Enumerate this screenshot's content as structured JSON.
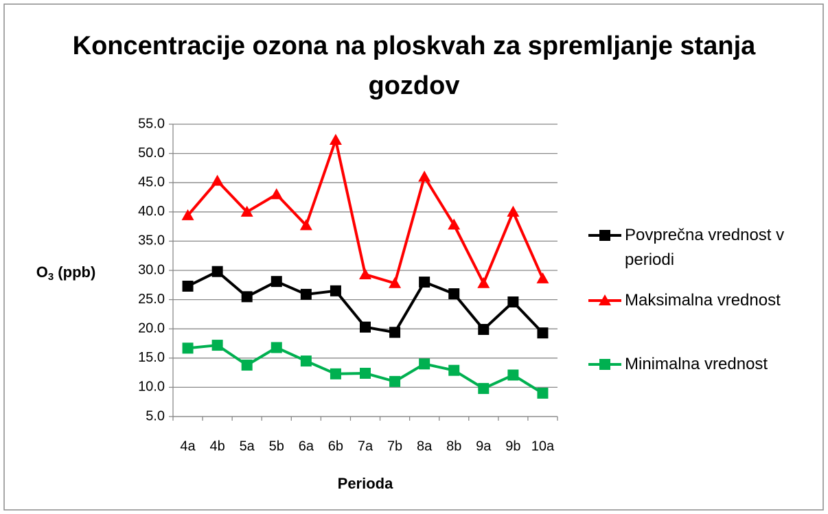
{
  "chart_data": {
    "type": "line",
    "title": "Koncentracije ozona na ploskvah za spremljanje stanja gozdov",
    "x_label": "Perioda",
    "y_label": [
      "O",
      "3",
      " (ppb)"
    ],
    "categories": [
      "4a",
      "4b",
      "5a",
      "5b",
      "6a",
      "6b",
      "7a",
      "7b",
      "8a",
      "8b",
      "9a",
      "9b",
      "10a"
    ],
    "series": [
      {
        "name": "Povprečna vrednost v periodi",
        "color": "#000000",
        "marker": "square",
        "values": [
          27.3,
          29.8,
          25.5,
          28.1,
          25.9,
          26.5,
          20.3,
          19.4,
          28.0,
          26.0,
          19.9,
          24.6,
          19.3
        ]
      },
      {
        "name": "Maksimalna vrednost",
        "color": "#ff0000",
        "marker": "triangle",
        "values": [
          39.4,
          45.3,
          40.0,
          43.0,
          37.7,
          52.3,
          29.3,
          27.8,
          46.0,
          37.8,
          27.8,
          40.0,
          28.6
        ]
      },
      {
        "name": "Minimalna vrednost",
        "color": "#00b050",
        "marker": "square",
        "values": [
          16.7,
          17.2,
          13.8,
          16.8,
          14.5,
          12.3,
          12.4,
          11.0,
          14.0,
          12.9,
          9.8,
          12.1,
          9.0
        ]
      }
    ],
    "ylim": [
      5,
      55
    ],
    "yticks": [
      {
        "value": 5,
        "label": "5.0"
      },
      {
        "value": 10,
        "label": "10.0"
      },
      {
        "value": 15,
        "label": "15.0"
      },
      {
        "value": 20,
        "label": "20.0"
      },
      {
        "value": 25,
        "label": "25.0"
      },
      {
        "value": 30,
        "label": "30.0"
      },
      {
        "value": 35,
        "label": "35.0"
      },
      {
        "value": 40,
        "label": "40.0"
      },
      {
        "value": 45,
        "label": "45.0"
      },
      {
        "value": 50,
        "label": "50.0"
      },
      {
        "value": 55,
        "label": "55.0"
      }
    ],
    "grid": true,
    "legend": "right"
  }
}
